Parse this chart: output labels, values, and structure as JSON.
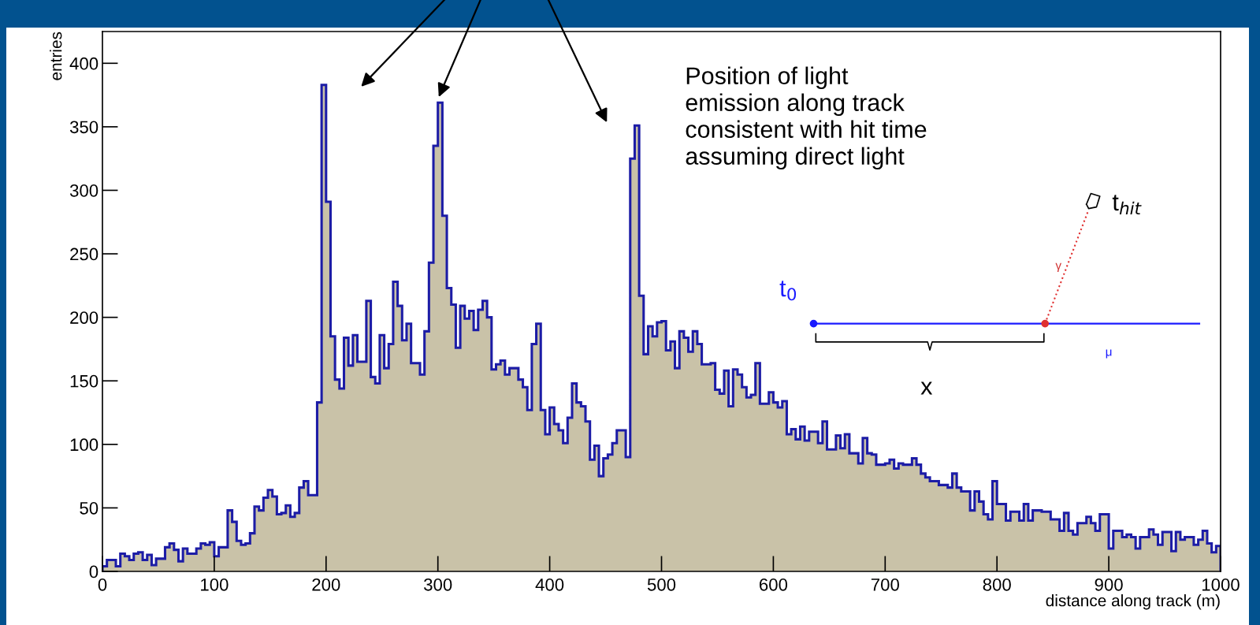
{
  "chart_data": {
    "type": "histogram",
    "xlabel": "distance along track (m)",
    "ylabel": "entries",
    "bins": [
      0,
      4,
      8,
      12,
      16,
      20,
      24,
      28,
      32,
      36,
      40,
      44,
      48,
      52,
      56,
      60,
      64,
      68,
      72,
      76,
      80,
      84,
      88,
      92,
      96,
      100,
      104,
      108,
      112,
      116,
      120,
      124,
      128,
      132,
      136,
      140,
      144,
      148,
      152,
      156,
      160,
      164,
      168,
      172,
      176,
      180,
      184,
      188,
      192,
      196,
      200,
      204,
      208,
      212,
      216,
      220,
      224,
      228,
      232,
      236,
      240,
      244,
      248,
      252,
      256,
      260,
      264,
      268,
      272,
      276,
      280,
      284,
      288,
      292,
      296,
      300,
      304,
      308,
      312,
      316,
      320,
      324,
      328,
      332,
      336,
      340,
      344,
      348,
      352,
      356,
      360,
      364,
      368,
      372,
      376,
      380,
      384,
      388,
      392,
      396,
      400,
      404,
      408,
      412,
      416,
      420,
      424,
      428,
      432,
      436,
      440,
      444,
      448,
      452,
      456,
      460,
      464,
      468,
      472,
      476,
      480,
      484,
      488,
      492,
      496,
      500,
      504,
      508,
      512,
      516,
      520,
      524,
      528,
      532,
      536,
      540,
      544,
      548,
      552,
      556,
      560,
      564,
      568,
      572,
      576,
      580,
      584,
      588,
      592,
      596,
      600,
      604,
      608,
      612,
      616,
      620,
      624,
      628,
      632,
      636,
      640,
      644,
      648,
      652,
      656,
      660,
      664,
      668,
      672,
      676,
      680,
      684,
      688,
      692,
      696,
      700,
      704,
      708,
      712,
      716,
      720,
      724,
      728,
      732,
      736,
      740,
      744,
      748,
      752,
      756,
      760,
      764,
      768,
      772,
      776,
      780,
      784,
      788,
      792,
      796,
      800,
      804,
      808,
      812,
      816,
      820,
      824,
      828,
      832,
      836,
      840,
      844,
      848,
      852,
      856,
      860,
      864,
      868,
      872,
      876,
      880,
      884,
      888,
      892,
      896,
      900,
      904,
      908,
      912,
      916,
      920,
      924,
      928,
      932,
      936,
      940,
      944,
      948,
      952,
      956,
      960,
      964,
      968,
      972,
      976,
      980,
      984,
      988,
      992,
      996,
      1000
    ],
    "values": [
      4,
      9,
      9,
      4,
      14,
      12,
      9,
      14,
      15,
      9,
      13,
      5,
      10,
      10,
      19,
      22,
      17,
      8,
      18,
      14,
      14,
      18,
      22,
      21,
      23,
      12,
      19,
      19,
      48,
      39,
      24,
      21,
      22,
      30,
      51,
      48,
      58,
      64,
      59,
      45,
      46,
      52,
      43,
      46,
      66,
      71,
      60,
      60,
      133,
      383,
      291,
      185,
      151,
      144,
      184,
      162,
      186,
      165,
      165,
      213,
      153,
      148,
      186,
      160,
      179,
      228,
      209,
      182,
      195,
      164,
      164,
      155,
      189,
      243,
      335,
      369,
      280,
      223,
      210,
      176,
      209,
      199,
      205,
      190,
      206,
      213,
      200,
      159,
      163,
      166,
      155,
      160,
      160,
      151,
      145,
      127,
      179,
      195,
      127,
      108,
      129,
      116,
      111,
      101,
      121,
      148,
      133,
      130,
      118,
      88,
      99,
      75,
      89,
      92,
      101,
      111,
      111,
      90,
      325,
      351,
      217,
      171,
      193,
      185,
      196,
      197,
      174,
      181,
      160,
      189,
      184,
      173,
      189,
      179,
      163,
      163,
      164,
      143,
      140,
      158,
      130,
      159,
      155,
      145,
      137,
      139,
      164,
      132,
      132,
      141,
      133,
      129,
      134,
      108,
      112,
      104,
      114,
      103,
      110,
      110,
      101,
      118,
      96,
      96,
      107,
      97,
      108,
      93,
      93,
      85,
      105,
      93,
      92,
      84,
      84,
      85,
      88,
      81,
      85,
      84,
      84,
      89,
      84,
      77,
      74,
      71,
      71,
      68,
      68,
      66,
      77,
      66,
      63,
      63,
      48,
      63,
      55,
      45,
      41,
      71,
      53,
      53,
      40,
      47,
      47,
      40,
      53,
      40,
      48,
      48,
      47,
      47,
      41,
      41,
      32,
      46,
      32,
      29,
      38,
      38,
      43,
      38,
      32,
      45,
      45,
      18,
      32,
      32,
      27,
      29,
      27,
      18,
      27,
      27,
      33,
      29,
      21,
      31,
      31,
      16,
      31,
      25,
      27,
      27,
      21,
      25,
      32,
      22,
      15,
      20
    ],
    "color": "#c9c2a8",
    "xlim": [
      0,
      1000
    ],
    "ylim": [
      0,
      425
    ],
    "xticks": [
      0,
      100,
      200,
      300,
      400,
      500,
      600,
      700,
      800,
      900,
      1000
    ],
    "yticks": [
      0,
      50,
      100,
      150,
      200,
      250,
      300,
      350,
      400
    ],
    "grid": false,
    "annotations": [
      "Position of light\nemission along track\nconsistent with hit time\nassuming direct light",
      "t$_{0}$",
      "x",
      "t$_{hit}$",
      "γ",
      "μ"
    ]
  }
}
